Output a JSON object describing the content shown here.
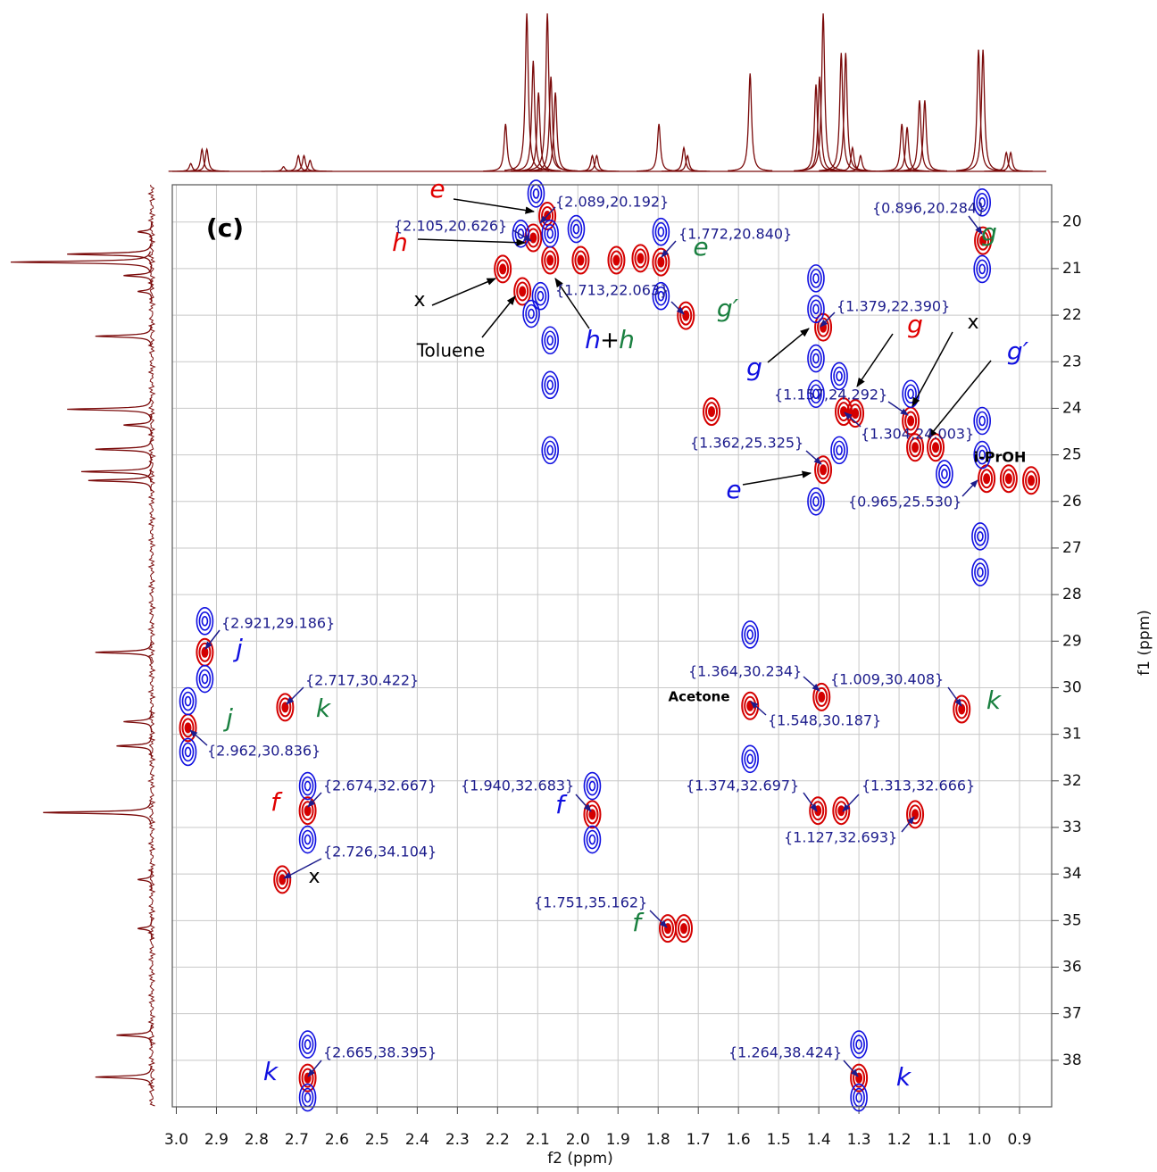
{
  "chart_data": {
    "type": "contour",
    "panel_label": "(c)",
    "xlabel": "f2 (ppm)",
    "ylabel": "f1 (ppm)",
    "xlim": [
      3.01,
      0.82
    ],
    "ylim": [
      19.2,
      39.0
    ],
    "xticks": [
      {
        "value": 3,
        "label": "3.0"
      },
      2.9,
      2.8,
      2.7,
      2.6,
      2.5,
      2.4,
      2.3,
      2.2,
      2.1,
      {
        "value": 2,
        "label": "2.0"
      },
      1.9,
      1.8,
      1.7,
      1.6,
      1.5,
      1.4,
      1.3,
      1.2,
      1.1,
      {
        "value": 1,
        "label": "1.0"
      },
      0.9
    ],
    "yticks": [
      20,
      21,
      22,
      23,
      24,
      25,
      26,
      27,
      28,
      29,
      30,
      31,
      32,
      33,
      34,
      35,
      36,
      37,
      38
    ],
    "grid": true,
    "series": [
      {
        "color": "#d40000",
        "x": [
          2.076,
          2.111,
          2.069,
          1.993,
          1.904,
          2.187,
          2.138,
          1.793,
          1.731,
          0.991,
          1.389,
          1.338,
          1.309,
          1.171,
          1.16,
          1.109,
          1.389,
          0.982,
          0.927,
          0.871,
          2.929,
          2.971,
          2.729,
          2.673,
          1.964,
          1.402,
          1.344,
          1.16,
          2.736,
          1.776,
          1.736,
          1.571,
          1.393,
          1.044,
          2.673,
          1.3,
          1.667,
          1.844
        ],
        "y": [
          19.87,
          20.34,
          20.82,
          20.82,
          20.82,
          21.01,
          21.49,
          20.86,
          22.01,
          20.4,
          22.26,
          24.07,
          24.11,
          24.27,
          24.84,
          24.84,
          25.32,
          25.51,
          25.51,
          25.55,
          29.24,
          30.86,
          30.42,
          32.64,
          32.72,
          32.64,
          32.64,
          32.72,
          34.12,
          35.17,
          35.17,
          30.39,
          30.2,
          30.46,
          38.38,
          38.38,
          24.07,
          20.78
        ]
      },
      {
        "color": "#1010e0",
        "x": [
          2.104,
          2.142,
          2.069,
          2.093,
          2.116,
          2.069,
          2.069,
          2.069,
          1.793,
          1.793,
          0.993,
          0.993,
          1.407,
          1.407,
          1.407,
          1.407,
          1.349,
          1.349,
          1.171,
          0.993,
          0.993,
          0.998,
          1.407,
          2.929,
          2.929,
          2.971,
          2.971,
          2.673,
          2.673,
          1.964,
          1.964,
          1.571,
          1.571,
          2.673,
          2.673,
          1.3,
          1.3,
          1.087,
          0.998,
          2.004
        ],
        "y": [
          19.39,
          20.25,
          20.25,
          21.59,
          21.97,
          22.54,
          23.5,
          24.9,
          20.21,
          21.59,
          19.58,
          21.01,
          21.21,
          21.87,
          22.93,
          23.69,
          23.31,
          24.9,
          23.69,
          24.27,
          25.0,
          26.75,
          26.0,
          28.57,
          29.81,
          30.29,
          31.38,
          32.11,
          33.26,
          32.11,
          33.26,
          28.86,
          31.53,
          37.66,
          38.8,
          37.66,
          38.8,
          25.41,
          27.52,
          20.15
        ]
      }
    ],
    "projections": {
      "color": "#7a0a0a",
      "f2": {
        "x": [
          2.964,
          2.936,
          2.924,
          2.733,
          2.696,
          2.682,
          2.667,
          2.18,
          2.127,
          2.111,
          2.098,
          2.076,
          2.067,
          2.056,
          1.964,
          1.953,
          1.798,
          1.736,
          1.727,
          1.571,
          1.407,
          1.398,
          1.389,
          1.344,
          1.333,
          1.316,
          1.296,
          1.193,
          1.18,
          1.149,
          1.136,
          1.002,
          0.991,
          0.933,
          0.922
        ],
        "heights": [
          0.05,
          0.14,
          0.14,
          0.03,
          0.1,
          0.1,
          0.07,
          0.3,
          1.0,
          0.7,
          0.5,
          1.0,
          0.6,
          0.5,
          0.1,
          0.1,
          0.3,
          0.15,
          0.1,
          0.62,
          0.55,
          0.6,
          1.0,
          0.75,
          0.75,
          0.15,
          0.1,
          0.3,
          0.28,
          0.45,
          0.45,
          0.77,
          0.77,
          0.12,
          0.12
        ]
      },
      "f1": {
        "y": [
          20.21,
          20.69,
          20.86,
          21.15,
          21.49,
          22.45,
          24.02,
          24.36,
          24.88,
          25.36,
          25.55,
          29.24,
          30.73,
          31.25,
          32.68,
          34.12,
          35.17,
          37.46,
          38.36
        ],
        "heights": [
          0.1,
          0.6,
          1.0,
          0.2,
          0.1,
          0.4,
          0.6,
          0.2,
          0.4,
          0.5,
          0.45,
          0.4,
          0.2,
          0.25,
          0.77,
          0.1,
          0.1,
          0.25,
          0.4
        ]
      }
    },
    "annotations": [
      {
        "text": "(c)",
        "color": "#000000"
      },
      {
        "text": "e",
        "color": "#e00000"
      },
      {
        "text": "h",
        "color": "#e00000"
      },
      {
        "text": "x",
        "color": "#000000"
      },
      {
        "text": "Toluene",
        "color": "#000000"
      },
      {
        "text": "h",
        "color": "#1010e0"
      },
      {
        "text": "+",
        "color": "#000000"
      },
      {
        "text": "h",
        "color": "#1a8040"
      },
      {
        "text": "e",
        "color": "#1a8040"
      },
      {
        "text": "g′",
        "color": "#1a8040"
      },
      {
        "text": "g",
        "color": "#1a8040"
      },
      {
        "text": "g",
        "color": "#1010e0"
      },
      {
        "text": "g",
        "color": "#e00000"
      },
      {
        "text": "x",
        "color": "#000000"
      },
      {
        "text": "g′",
        "color": "#1010e0"
      },
      {
        "text": "e",
        "color": "#1010e0"
      },
      {
        "text": "i-PrOH",
        "color": "#000000"
      },
      {
        "text": "j",
        "color": "#1010e0"
      },
      {
        "text": "j",
        "color": "#1a8040"
      },
      {
        "text": "k",
        "color": "#1a8040"
      },
      {
        "text": "Acetone",
        "color": "#000000"
      },
      {
        "text": "k",
        "color": "#1a8040"
      },
      {
        "text": "f",
        "color": "#e00000"
      },
      {
        "text": "f",
        "color": "#1010e0"
      },
      {
        "text": "x",
        "color": "#000000"
      },
      {
        "text": "f",
        "color": "#1a8040"
      },
      {
        "text": "k",
        "color": "#1010e0"
      },
      {
        "text": "k",
        "color": "#1010e0"
      }
    ],
    "peak_labels": {
      "color": "#1c1c8c",
      "labels": [
        "{2.089,20.192}",
        "{2.105,20.626}",
        "{1.772,20.840}",
        "{0.896,20.284}",
        "{1.713,22.063}",
        "{1.379,22.390}",
        "{1.157,24.292}",
        "{1.304,24.003}",
        "{1.362,25.325}",
        "{0.965,25.530}",
        "{2.921,29.186}",
        "{1.364,30.234}",
        "{1.009,30.408}",
        "{2.717,30.422}",
        "{1.548,30.187}",
        "{2.962,30.836}",
        "{2.674,32.667}",
        "{1.940,32.683}",
        "{1.374,32.697}",
        "{1.313,32.666}",
        "{1.127,32.693}",
        "{2.726,34.104}",
        "{1.751,35.162}",
        "{2.665,38.395}",
        "{1.264,38.424}"
      ]
    }
  }
}
